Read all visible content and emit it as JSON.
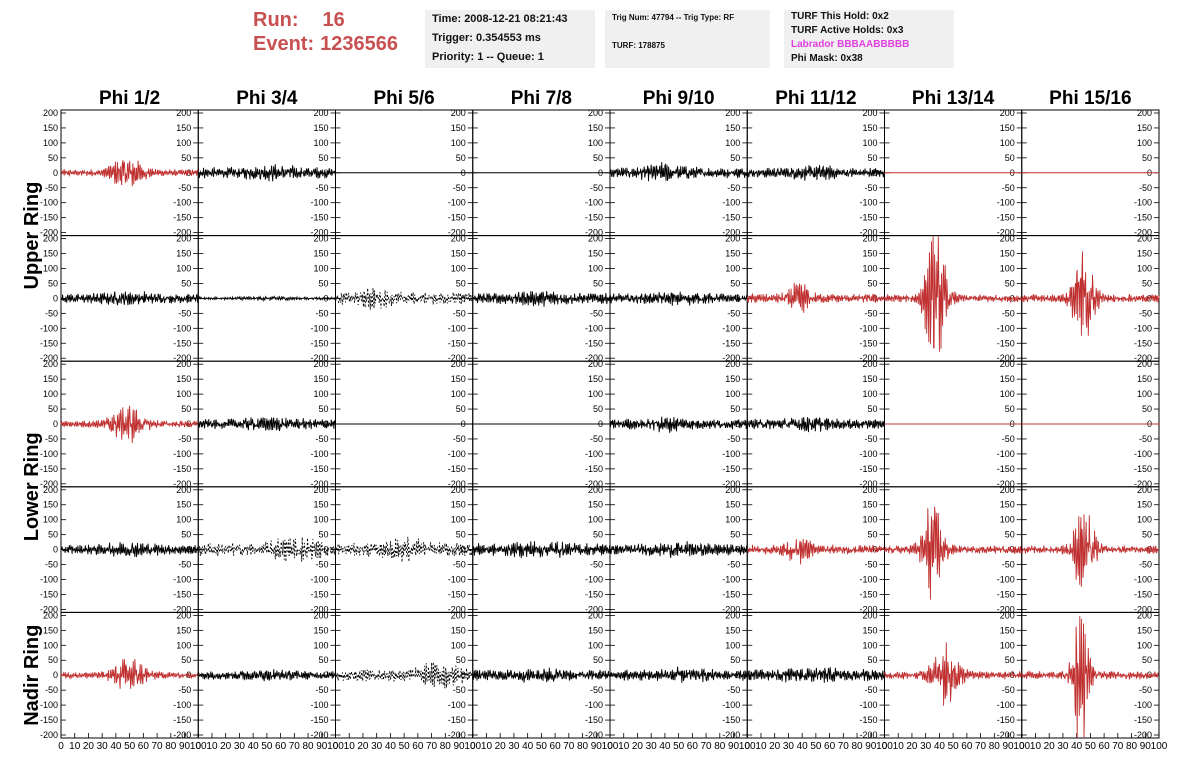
{
  "header": {
    "run_label": "Run:",
    "run_value": "16",
    "event_label": "Event:",
    "event_value": "1236566",
    "time": "Time: 2008-12-21 08:21:43",
    "trigger": "Trigger: 0.354553 ms",
    "priority": "Priority: 1 -- Queue: 1",
    "trig_num": "Trig Num: 47794 -- Trig Type: RF",
    "turf": "TURF: 178875",
    "turf_hold": "TURF This Hold: 0x2",
    "turf_active": "TURF Active Holds: 0x3",
    "labrador": "Labrador BBBAABBBBB",
    "phi_mask": "Phi Mask: 0x38"
  },
  "chart_data": {
    "type": "line",
    "columns": [
      "Phi 1/2",
      "Phi 3/4",
      "Phi 5/6",
      "Phi 7/8",
      "Phi 9/10",
      "Phi 11/12",
      "Phi 13/14",
      "Phi 15/16"
    ],
    "row_groups": [
      "Upper Ring",
      "Lower Ring",
      "Nadir Ring"
    ],
    "ylim": [
      -210,
      210
    ],
    "xlim": [
      0,
      100
    ],
    "y_ticks": [
      200,
      150,
      100,
      50,
      0,
      -50,
      -100,
      -150,
      -200
    ],
    "x_ticks": [
      0,
      10,
      20,
      30,
      40,
      50,
      60,
      70,
      80,
      90,
      100
    ],
    "grid": false,
    "triggered_color": "#c03030",
    "normal_color": "#000000",
    "panels": [
      [
        {
          "color": "red",
          "style": "solid",
          "amp": 10,
          "burst": [
            48,
            45,
            12
          ]
        },
        {
          "color": "black",
          "style": "solid",
          "amp": 16,
          "burst": [
            55,
            10,
            20
          ]
        },
        {
          "color": "black",
          "style": "flat",
          "amp": 0,
          "burst": null
        },
        {
          "color": "black",
          "style": "flat",
          "amp": 0,
          "burst": null
        },
        {
          "color": "black",
          "style": "solid",
          "amp": 16,
          "burst": [
            40,
            15,
            15
          ]
        },
        {
          "color": "black",
          "style": "solid",
          "amp": 14,
          "burst": [
            50,
            10,
            20
          ]
        },
        {
          "color": "red",
          "style": "flat",
          "amp": 0,
          "burst": null
        },
        {
          "color": "red",
          "style": "flat",
          "amp": 0,
          "burst": null
        }
      ],
      [
        {
          "color": "black",
          "style": "solid",
          "amp": 14,
          "burst": [
            50,
            10,
            20
          ]
        },
        {
          "color": "black",
          "style": "solid",
          "amp": 4,
          "burst": [
            50,
            3,
            20
          ]
        },
        {
          "color": "black",
          "style": "dashed",
          "amp": 18,
          "burst": [
            30,
            20,
            10
          ]
        },
        {
          "color": "black",
          "style": "solid",
          "amp": 16,
          "burst": [
            50,
            8,
            20
          ]
        },
        {
          "color": "black",
          "style": "solid",
          "amp": 14,
          "burst": [
            50,
            8,
            20
          ]
        },
        {
          "color": "red",
          "style": "solid",
          "amp": 14,
          "burst": [
            38,
            40,
            8
          ]
        },
        {
          "color": "red",
          "style": "solid",
          "amp": 12,
          "burst": [
            37,
            200,
            8
          ]
        },
        {
          "color": "red",
          "style": "solid",
          "amp": 12,
          "burst": [
            45,
            150,
            8
          ]
        }
      ],
      [
        {
          "color": "red",
          "style": "solid",
          "amp": 10,
          "burst": [
            48,
            50,
            12
          ]
        },
        {
          "color": "black",
          "style": "solid",
          "amp": 15,
          "burst": [
            50,
            8,
            20
          ]
        },
        {
          "color": "black",
          "style": "flat",
          "amp": 0,
          "burst": null
        },
        {
          "color": "black",
          "style": "flat",
          "amp": 0,
          "burst": null
        },
        {
          "color": "black",
          "style": "solid",
          "amp": 15,
          "burst": [
            40,
            10,
            15
          ]
        },
        {
          "color": "black",
          "style": "solid",
          "amp": 15,
          "burst": [
            45,
            10,
            15
          ]
        },
        {
          "color": "red",
          "style": "flat",
          "amp": 0,
          "burst": null
        },
        {
          "color": "red",
          "style": "flat",
          "amp": 0,
          "burst": null
        }
      ],
      [
        {
          "color": "black",
          "style": "solid",
          "amp": 14,
          "burst": [
            50,
            10,
            20
          ]
        },
        {
          "color": "black",
          "style": "dashed",
          "amp": 20,
          "burst": [
            70,
            25,
            15
          ]
        },
        {
          "color": "black",
          "style": "dashed",
          "amp": 20,
          "burst": [
            50,
            20,
            15
          ]
        },
        {
          "color": "black",
          "style": "solid",
          "amp": 18,
          "burst": [
            50,
            10,
            20
          ]
        },
        {
          "color": "black",
          "style": "solid",
          "amp": 16,
          "burst": [
            50,
            10,
            20
          ]
        },
        {
          "color": "red",
          "style": "solid",
          "amp": 14,
          "burst": [
            38,
            30,
            10
          ]
        },
        {
          "color": "red",
          "style": "solid",
          "amp": 12,
          "burst": [
            35,
            140,
            8
          ]
        },
        {
          "color": "red",
          "style": "solid",
          "amp": 12,
          "burst": [
            45,
            120,
            8
          ]
        }
      ],
      [
        {
          "color": "red",
          "style": "solid",
          "amp": 10,
          "burst": [
            50,
            45,
            12
          ]
        },
        {
          "color": "black",
          "style": "solid",
          "amp": 12,
          "burst": [
            50,
            8,
            20
          ]
        },
        {
          "color": "black",
          "style": "dashed",
          "amp": 18,
          "burst": [
            75,
            25,
            15
          ]
        },
        {
          "color": "black",
          "style": "solid",
          "amp": 16,
          "burst": [
            50,
            8,
            20
          ]
        },
        {
          "color": "black",
          "style": "solid",
          "amp": 16,
          "burst": [
            50,
            8,
            20
          ]
        },
        {
          "color": "black",
          "style": "solid",
          "amp": 18,
          "burst": [
            50,
            8,
            20
          ]
        },
        {
          "color": "red",
          "style": "solid",
          "amp": 12,
          "burst": [
            45,
            80,
            10
          ]
        },
        {
          "color": "red",
          "style": "solid",
          "amp": 12,
          "burst": [
            43,
            210,
            6
          ]
        }
      ]
    ]
  }
}
